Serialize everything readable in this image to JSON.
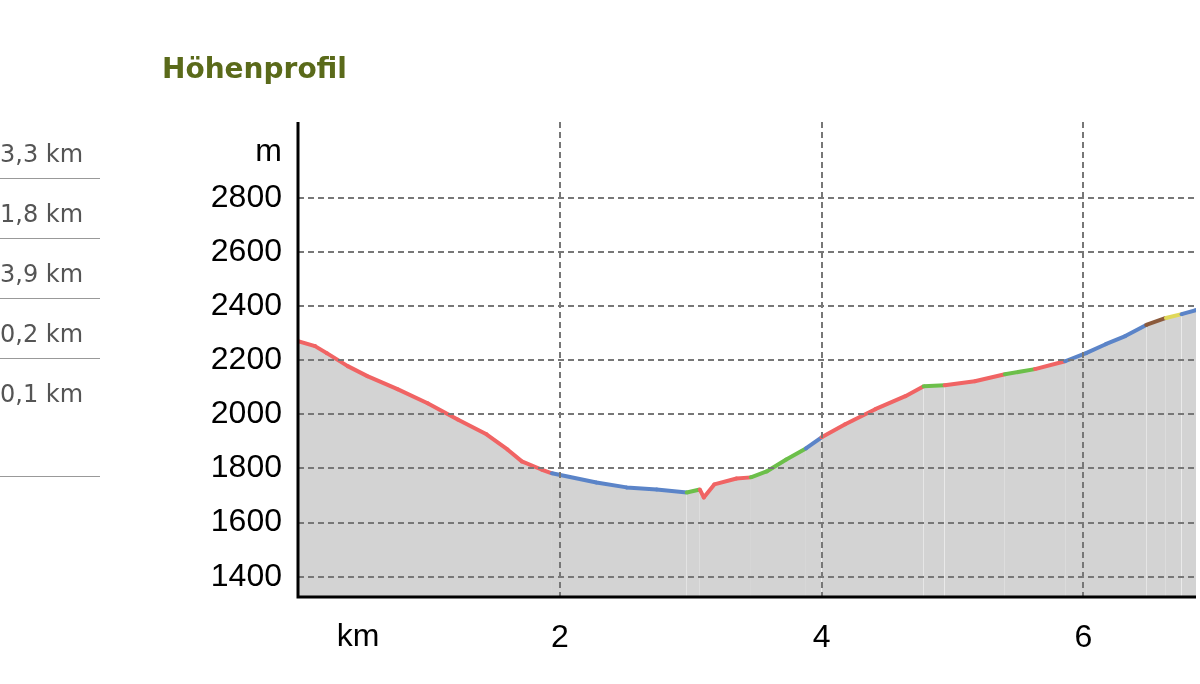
{
  "chart_data": {
    "type": "area",
    "title": "Höhenprofil",
    "xlabel": "km",
    "ylabel": "m",
    "annotations": [
      "3,3 km",
      "1,8 km",
      "3,9 km",
      "0,2 km",
      "0,1 km"
    ],
    "xlim": [
      0,
      6.86
    ],
    "ylim": [
      1325,
      3080
    ],
    "xticks": [
      2,
      4,
      6
    ],
    "yticks": [
      1400,
      1600,
      1800,
      2000,
      2200,
      2400,
      2600,
      2800
    ],
    "grid": true,
    "line_style": "dashed",
    "legend": false,
    "series": [
      {
        "color": "#d3d3d3",
        "x": [
          0,
          0.13,
          0.22,
          0.38,
          0.53,
          0.76,
          0.99,
          1.22,
          1.44,
          1.6,
          1.71,
          1.86,
          1.94,
          2.28,
          2.51,
          2.74,
          2.97,
          3.07,
          3.1,
          3.18,
          3.35,
          3.46,
          3.58,
          3.73,
          3.88,
          4.0,
          4.18,
          4.41,
          4.64,
          4.78,
          4.94,
          5.17,
          5.4,
          5.63,
          5.86,
          6.02,
          6.17,
          6.32,
          6.48,
          6.63,
          6.75,
          6.86
        ],
        "values": [
          2270,
          2252,
          2226,
          2178,
          2141,
          2093,
          2041,
          1981,
          1926,
          1870,
          1826,
          1796,
          1782,
          1748,
          1730,
          1722,
          1711,
          1722,
          1693,
          1741,
          1763,
          1767,
          1789,
          1833,
          1874,
          1915,
          1963,
          2019,
          2067,
          2104,
          2107,
          2122,
          2148,
          2167,
          2196,
          2226,
          2259,
          2289,
          2330,
          2356,
          2370,
          2385
        ],
        "colors": [
          "#f06464",
          "#f06464",
          "#f06464",
          "#f06464",
          "#f06464",
          "#f06464",
          "#f06464",
          "#f06464",
          "#f06464",
          "#f06464",
          "#f06464",
          "#f06464",
          "#5b84c8",
          "#5b84c8",
          "#5b84c8",
          "#5b84c8",
          "#6cbf4a",
          "#f06464",
          "#f06464",
          "#f06464",
          "#f06464",
          "#6cbf4a",
          "#6cbf4a",
          "#6cbf4a",
          "#5b84c8",
          "#f06464",
          "#f06464",
          "#f06464",
          "#f06464",
          "#6cbf4a",
          "#f06464",
          "#f06464",
          "#6cbf4a",
          "#f06464",
          "#5b84c8",
          "#5b84c8",
          "#5b84c8",
          "#5b84c8",
          "#8b5a3c",
          "#e0d85a",
          "#5b84c8",
          "#5b84c8"
        ]
      }
    ]
  }
}
